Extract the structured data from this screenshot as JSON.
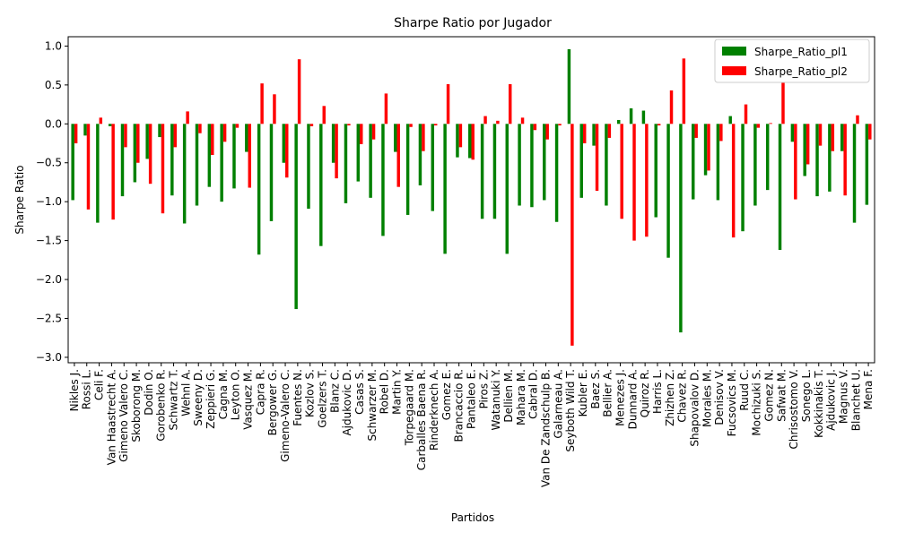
{
  "chart_data": {
    "type": "bar",
    "title": "Sharpe Ratio por Jugador",
    "x_label": "Partidos",
    "y_label": "Sharpe Ratio",
    "categories": [
      "Nikles J.",
      "Rossi L.",
      "Celi F.",
      "Van Haastrecht A.",
      "Gimeno Valero C.",
      "Skoborong M.",
      "Dodin O.",
      "Gorobenko R.",
      "Schwartz T.",
      "Wehnl A.",
      "Sweeny D.",
      "Zeppieri G.",
      "Cagna M.",
      "Leyton O.",
      "Vasquez M.",
      "Capra R.",
      "Bergower G.",
      "Gimeno-Valero C.",
      "Fuentes N.",
      "Kozlov S.",
      "Goelzers T.",
      "Blanz C.",
      "Ajdukovic D.",
      "Casas S.",
      "Schwarzer M.",
      "Robel D.",
      "Martin Y.",
      "Torpegaard M.",
      "Carballes Baena R.",
      "Rinderknech A.",
      "Gomez E.",
      "Brancaccio R.",
      "Pantaleo E.",
      "Piros Z.",
      "Watanuki Y.",
      "Dellien M.",
      "Mahara M.",
      "Cabral D.",
      "Van De Zandschulp B.",
      "Galarneau A.",
      "Seyboth Wild T.",
      "Kubler E.",
      "Baez S.",
      "Bellier A.",
      "Menezes J.",
      "Dunnard A.",
      "Quiroz R.",
      "Harris L.",
      "Zhizhen Z.",
      "Chavez R.",
      "Shapovalov D.",
      "Morales M.",
      "Denisov V.",
      "Fucsovics M.",
      "Ruud C.",
      "Mochizuki S.",
      "Gomez N.",
      "Safwat M.",
      "Chrisostomo V.",
      "Sonego L.",
      "Kokkinakis T.",
      "Ajdukovic J.",
      "Magnus V.",
      "Blanchet U.",
      "Mena F."
    ],
    "series": [
      {
        "name": "Sharpe_Ratio_pl1",
        "color": "#008000",
        "values": [
          -0.98,
          -0.15,
          -1.27,
          -0.03,
          -0.93,
          -0.75,
          -0.45,
          -0.17,
          -0.92,
          -1.28,
          -1.05,
          -0.81,
          -1.0,
          -0.83,
          -0.36,
          -1.68,
          -1.25,
          -0.5,
          -2.38,
          -1.09,
          -1.57,
          -0.5,
          -1.02,
          -0.74,
          -0.95,
          -1.44,
          -0.36,
          -1.17,
          -0.79,
          -1.12,
          -1.67,
          -0.43,
          -0.44,
          -1.22,
          -1.22,
          -1.67,
          -1.05,
          -1.07,
          -0.98,
          -1.26,
          0.96,
          -0.95,
          -0.28,
          -1.05,
          0.05,
          0.2,
          0.17,
          -1.2,
          -1.72,
          -2.68,
          -0.97,
          -0.66,
          -0.98,
          0.1,
          -1.38,
          -1.05,
          -0.85,
          -1.62,
          -0.23,
          -0.67,
          -0.93,
          -0.87,
          -0.35,
          -1.27,
          -1.04
        ]
      },
      {
        "name": "Sharpe_Ratio_pl2",
        "color": "#ff0000",
        "values": [
          -0.25,
          -1.1,
          0.08,
          -1.23,
          -0.3,
          -0.5,
          -0.77,
          -1.15,
          -0.3,
          0.16,
          -0.12,
          -0.4,
          -0.23,
          -0.05,
          -0.82,
          0.52,
          0.38,
          -0.69,
          0.83,
          -0.03,
          0.23,
          -0.7,
          -0.02,
          -0.26,
          -0.2,
          0.39,
          -0.81,
          -0.04,
          -0.35,
          -0.02,
          0.51,
          -0.3,
          -0.46,
          0.1,
          0.04,
          0.51,
          0.08,
          -0.08,
          -0.2,
          -0.02,
          -2.85,
          -0.25,
          -0.86,
          -0.18,
          -1.22,
          -1.5,
          -1.45,
          -0.02,
          0.43,
          0.84,
          -0.18,
          -0.6,
          -0.22,
          -1.46,
          0.25,
          -0.05,
          0.01,
          0.55,
          -0.97,
          -0.52,
          -0.28,
          -0.35,
          -0.92,
          0.11,
          -0.2
        ]
      }
    ],
    "ylim": [
      -3.07,
      1.12
    ],
    "yticks": [
      {
        "value": -3.0,
        "label": "−3.0"
      },
      {
        "value": -2.5,
        "label": "−2.5"
      },
      {
        "value": -2.0,
        "label": "−2.0"
      },
      {
        "value": -1.5,
        "label": "−1.5"
      },
      {
        "value": -1.0,
        "label": "−1.0"
      },
      {
        "value": -0.5,
        "label": "−0.5"
      },
      {
        "value": 0,
        "label": "0.0"
      },
      {
        "value": 0.5,
        "label": "0.5"
      },
      {
        "value": 1.0,
        "label": "1.0"
      }
    ],
    "legend": "upper right"
  }
}
